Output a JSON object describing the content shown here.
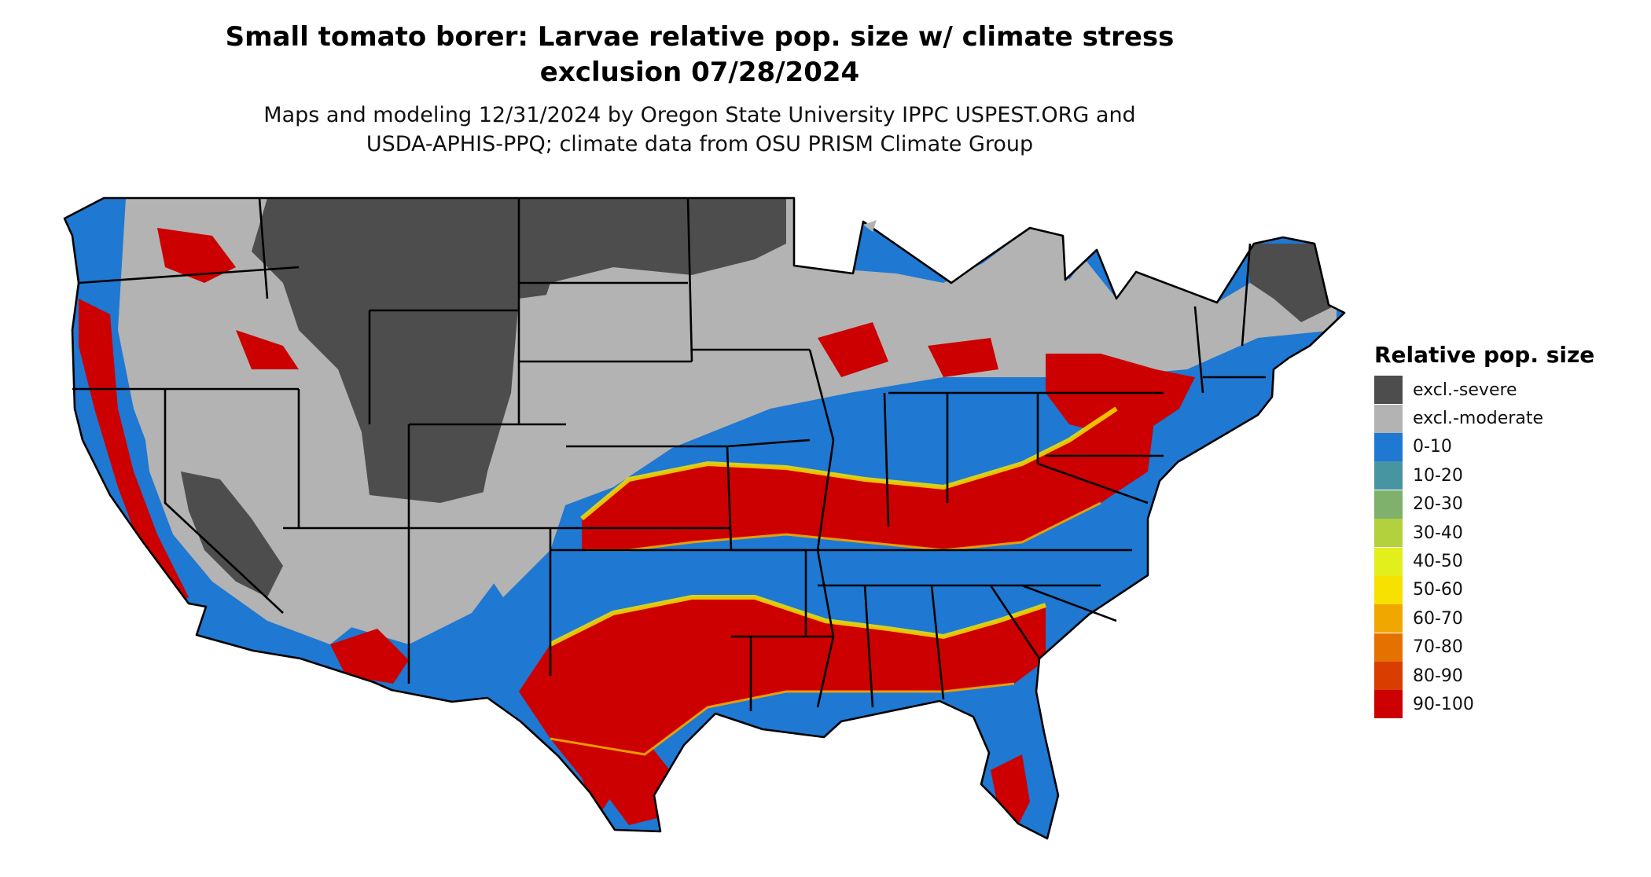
{
  "title": {
    "line1": "Small tomato borer: Larvae relative pop. size w/ climate stress",
    "line2": "exclusion 07/28/2024"
  },
  "subtitle": {
    "line1": "Maps and modeling 12/31/2024 by Oregon State University IPPC USPEST.ORG and",
    "line2": "USDA-APHIS-PPQ; climate data from OSU PRISM Climate Group"
  },
  "legend": {
    "title": "Relative pop. size",
    "items": [
      {
        "label": "excl.-severe",
        "color": "#4d4d4d"
      },
      {
        "label": "excl.-moderate",
        "color": "#b3b3b3"
      },
      {
        "label": "0-10",
        "color": "#1f78d1"
      },
      {
        "label": "10-20",
        "color": "#4895a2"
      },
      {
        "label": "20-30",
        "color": "#7fb06c"
      },
      {
        "label": "30-40",
        "color": "#b3d13c"
      },
      {
        "label": "40-50",
        "color": "#e3ee1d"
      },
      {
        "label": "50-60",
        "color": "#f6e100"
      },
      {
        "label": "60-70",
        "color": "#f0a800"
      },
      {
        "label": "70-80",
        "color": "#e57200"
      },
      {
        "label": "80-90",
        "color": "#d93d00"
      },
      {
        "label": "90-100",
        "color": "#cc0000"
      }
    ]
  },
  "map": {
    "region": "conterminous-usa",
    "boundary_color": "#000000"
  }
}
